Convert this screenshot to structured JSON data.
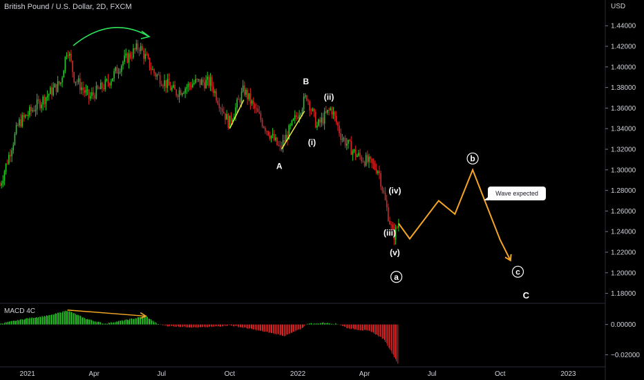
{
  "header": {
    "title": "British Pound / U.S. Dollar, 2D, FXCM",
    "currency": "USD"
  },
  "macd": {
    "label": "MACD 4C"
  },
  "callout": {
    "text": "Wave expected"
  },
  "colors": {
    "up": "#26c926",
    "down": "#e02424",
    "projection": "#f5a623",
    "annotation_green": "#2ee65b",
    "trendline_yellow": "#f0e442"
  },
  "chart_data": {
    "type": "candlestick",
    "yaxis": {
      "ticks": [
        "1.44000",
        "1.42000",
        "1.40000",
        "1.38000",
        "1.36000",
        "1.34000",
        "1.32000",
        "1.30000",
        "1.28000",
        "1.26000",
        "1.24000",
        "1.22000",
        "1.20000",
        "1.18000"
      ],
      "tick_values": [
        1.44,
        1.42,
        1.4,
        1.38,
        1.36,
        1.34,
        1.32,
        1.3,
        1.28,
        1.26,
        1.24,
        1.22,
        1.2,
        1.18
      ],
      "range": [
        1.171,
        1.465
      ]
    },
    "xaxis": {
      "ticks": [
        "2021",
        "Apr",
        "Jul",
        "Oct",
        "2022",
        "Apr",
        "Jul",
        "Oct",
        "2023"
      ],
      "range": [
        "2020-11-25",
        "2023-02-20"
      ]
    },
    "price_path": [
      [
        "2020-11-25",
        1.285
      ],
      [
        "2020-12-20",
        1.345
      ],
      [
        "2021-01-10",
        1.36
      ],
      [
        "2021-02-15",
        1.385
      ],
      [
        "2021-02-24",
        1.42
      ],
      [
        "2021-03-05",
        1.39
      ],
      [
        "2021-03-25",
        1.37
      ],
      [
        "2021-04-20",
        1.385
      ],
      [
        "2021-05-10",
        1.405
      ],
      [
        "2021-06-01",
        1.42
      ],
      [
        "2021-06-20",
        1.395
      ],
      [
        "2021-07-20",
        1.375
      ],
      [
        "2021-08-15",
        1.385
      ],
      [
        "2021-09-05",
        1.385
      ],
      [
        "2021-09-30",
        1.345
      ],
      [
        "2021-10-20",
        1.378
      ],
      [
        "2021-11-15",
        1.345
      ],
      [
        "2021-12-08",
        1.32
      ],
      [
        "2022-01-13",
        1.372
      ],
      [
        "2022-01-27",
        1.342
      ],
      [
        "2022-02-15",
        1.36
      ],
      [
        "2022-03-01",
        1.332
      ],
      [
        "2022-03-20",
        1.315
      ],
      [
        "2022-04-05",
        1.308
      ],
      [
        "2022-04-20",
        1.3
      ],
      [
        "2022-05-01",
        1.262
      ],
      [
        "2022-05-10",
        1.235
      ],
      [
        "2022-05-17",
        1.248
      ]
    ],
    "trendlines": [
      [
        [
          "2021-10-01",
          1.34
        ],
        [
          "2021-10-20",
          1.368
        ]
      ],
      [
        [
          "2021-12-10",
          1.32
        ],
        [
          "2022-01-10",
          1.357
        ]
      ]
    ],
    "projection": [
      [
        "2022-05-17",
        1.248
      ],
      [
        "2022-06-01",
        1.233
      ],
      [
        "2022-07-10",
        1.27
      ],
      [
        "2022-08-01",
        1.257
      ],
      [
        "2022-08-25",
        1.3
      ],
      [
        "2022-10-01",
        1.232
      ],
      [
        "2022-10-15",
        1.212
      ]
    ],
    "annotations": [
      {
        "label": "A",
        "x": "2021-12-07",
        "y": 1.301
      },
      {
        "label": "B",
        "x": "2022-01-12",
        "y": 1.383
      },
      {
        "label": "(i)",
        "x": "2022-01-20",
        "y": 1.324
      },
      {
        "label": "(ii)",
        "x": "2022-02-12",
        "y": 1.368
      },
      {
        "label": "(iii)",
        "x": "2022-05-05",
        "y": 1.236
      },
      {
        "label": "(iv)",
        "x": "2022-05-12",
        "y": 1.277
      },
      {
        "label": "(v)",
        "x": "2022-05-12",
        "y": 1.217
      }
    ],
    "circled": [
      {
        "label": "a",
        "x": "2022-05-14",
        "y": 1.196
      },
      {
        "label": "b",
        "x": "2022-08-25",
        "y": 1.311
      },
      {
        "label": "c",
        "x": "2022-10-25",
        "y": 1.201
      }
    ],
    "big_labels": [
      {
        "label": "C",
        "x": "2022-11-05",
        "y": 1.175
      }
    ],
    "macd_axis": {
      "ticks": [
        "0.00000",
        "−0.02000"
      ],
      "tick_values": [
        0.0,
        -0.02
      ],
      "range": [
        -0.0275,
        0.0135
      ]
    },
    "macd_path": [
      [
        "2020-11-25",
        0.0005
      ],
      [
        "2021-01-01",
        0.004
      ],
      [
        "2021-02-01",
        0.006
      ],
      [
        "2021-02-24",
        0.0093
      ],
      [
        "2021-03-20",
        0.004
      ],
      [
        "2021-04-15",
        0.0005
      ],
      [
        "2021-05-15",
        0.003
      ],
      [
        "2021-06-10",
        0.0055
      ],
      [
        "2021-06-25",
        0.0005
      ],
      [
        "2021-07-10",
        -0.001
      ],
      [
        "2021-08-20",
        -0.002
      ],
      [
        "2021-09-10",
        -0.0015
      ],
      [
        "2021-10-01",
        -0.0005
      ],
      [
        "2021-10-25",
        -0.0025
      ],
      [
        "2021-11-25",
        -0.0055
      ],
      [
        "2021-12-15",
        -0.0075
      ],
      [
        "2022-01-05",
        -0.003
      ],
      [
        "2022-01-15",
        0.0008
      ],
      [
        "2022-01-25",
        0.0005
      ],
      [
        "2022-02-05",
        0.0012
      ],
      [
        "2022-02-25",
        0.0003
      ],
      [
        "2022-03-10",
        -0.0025
      ],
      [
        "2022-04-10",
        -0.0045
      ],
      [
        "2022-04-28",
        -0.01
      ],
      [
        "2022-05-10",
        -0.02
      ],
      [
        "2022-05-17",
        -0.0265
      ]
    ],
    "macd_divergence": [
      [
        "2021-02-24",
        0.0095
      ],
      [
        "2021-06-10",
        0.0055
      ]
    ]
  }
}
